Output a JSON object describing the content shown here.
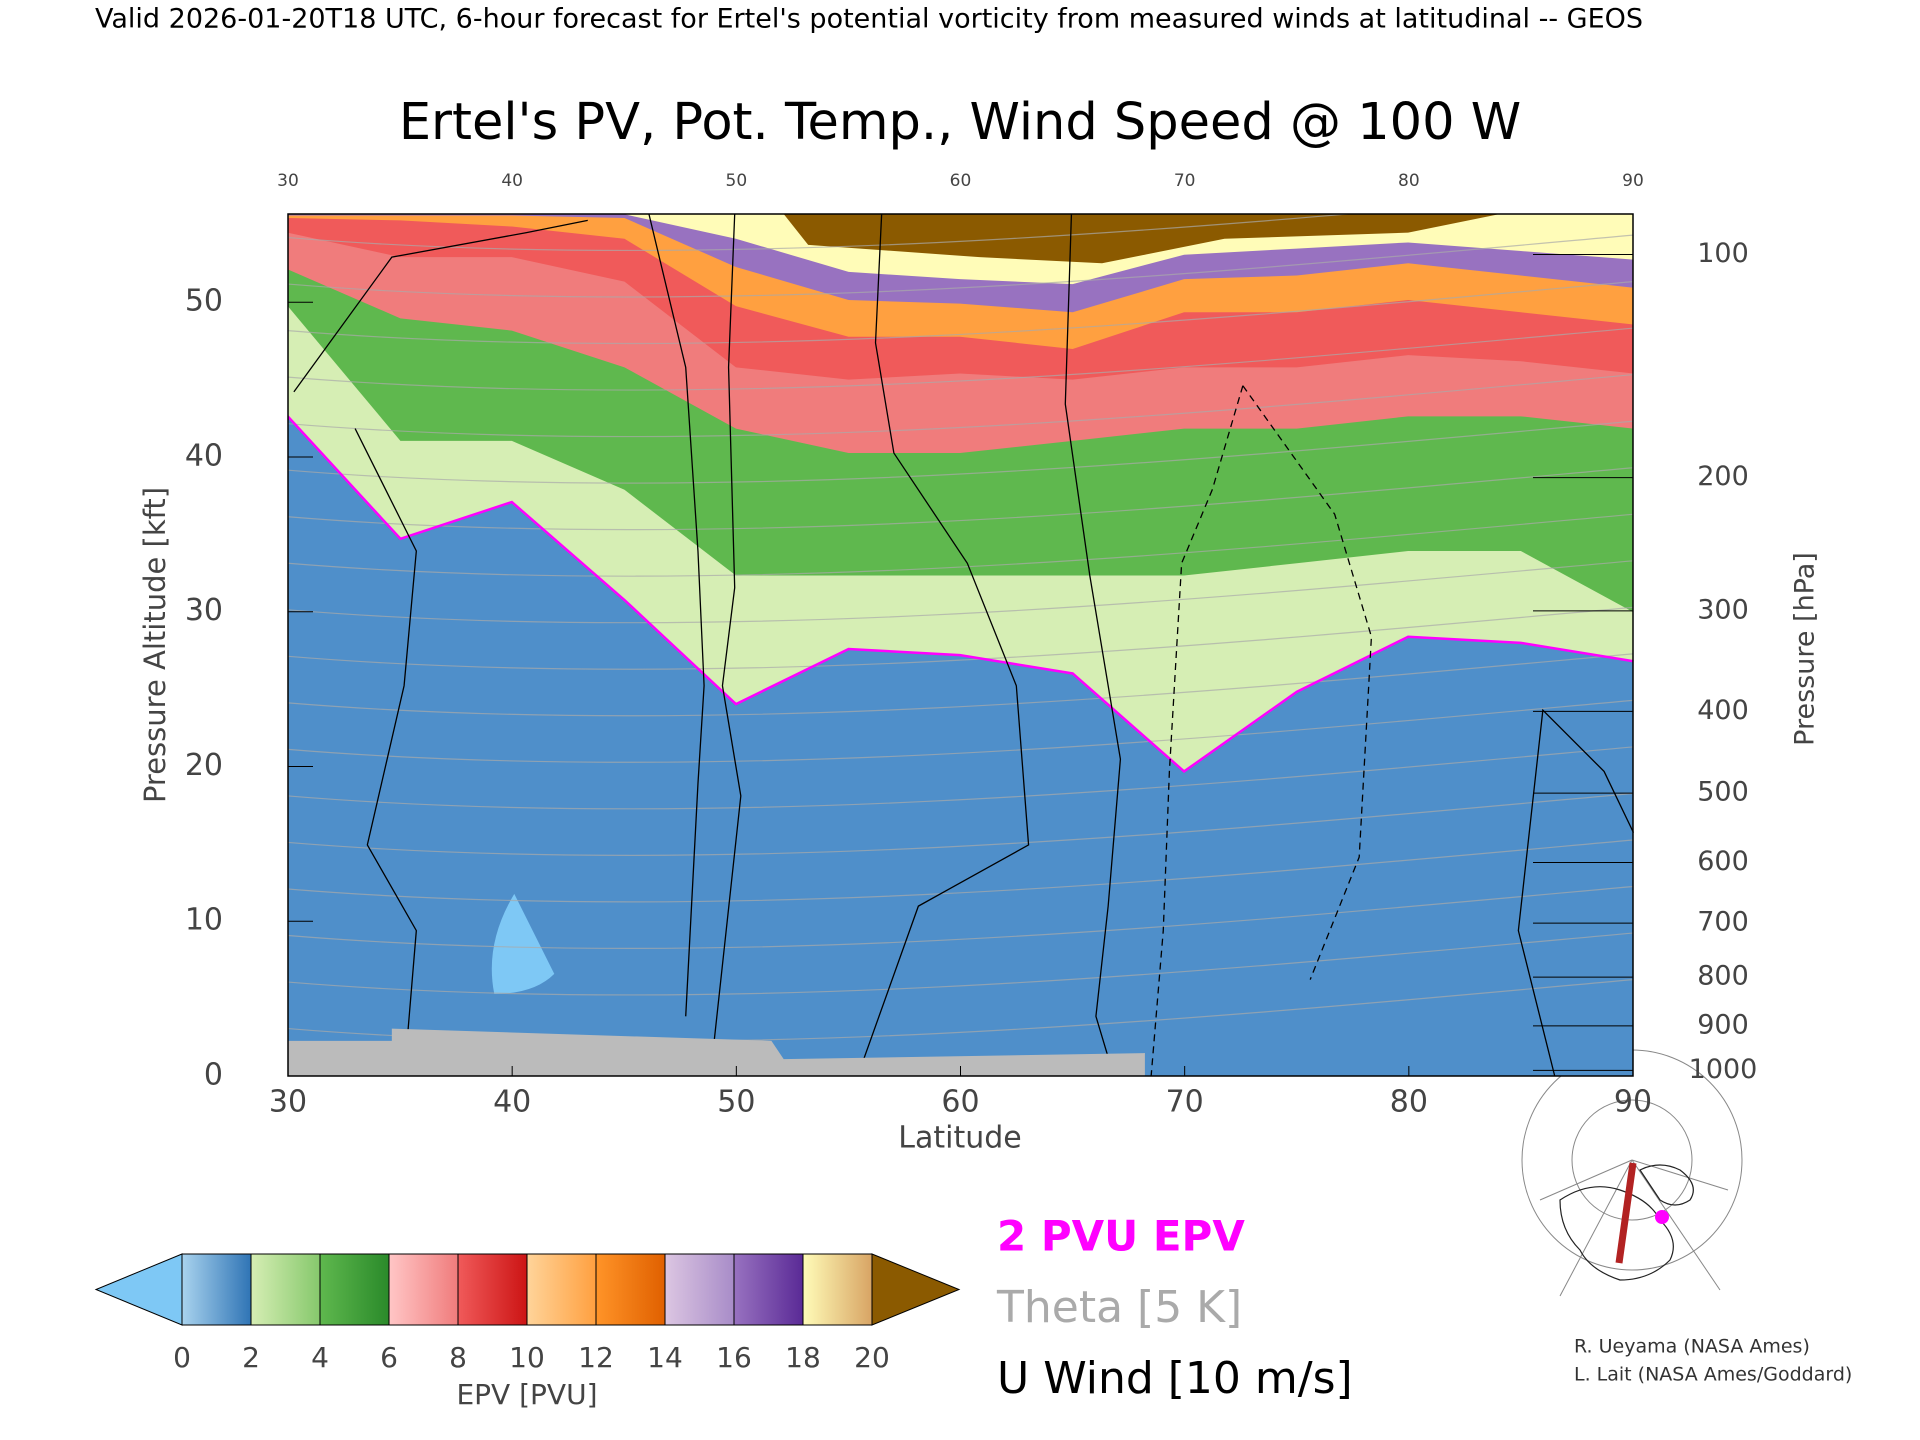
{
  "header": "Valid 2026-01-20T18 UTC, 6-hour forecast for Ertel's potential vorticity from measured winds at latitudinal -- GEOS",
  "chart_data": {
    "type": "cross-section",
    "title": "Ertel's PV, Pot. Temp., Wind Speed @ 100 W",
    "xlabel": "Latitude",
    "ylabel": "Pressure Altitude [kft]",
    "y2label": "Pressure [hPa]",
    "xlim": [
      30,
      90
    ],
    "xticks": [
      30,
      40,
      50,
      60,
      70,
      80,
      90
    ],
    "ylim": [
      0,
      55.7
    ],
    "yticks": [
      0,
      10,
      20,
      30,
      40,
      50
    ],
    "y2scale": "pressure-altitude",
    "y2ticks": [
      100,
      200,
      300,
      400,
      500,
      600,
      700,
      800,
      900,
      1000
    ],
    "colorbar": {
      "label": "EPV [PVU]",
      "ticks": [
        0,
        2,
        4,
        6,
        8,
        10,
        12,
        14,
        16,
        18,
        20
      ],
      "under_color": "#7ec8f5",
      "over_color": "#8b5a00",
      "colors": [
        [
          "#a9d3ee",
          "#2f74b5"
        ],
        [
          "#d6eeb4",
          "#86c86c"
        ],
        [
          "#5fb84e",
          "#2a8a2a"
        ],
        [
          "#ffc6c6",
          "#f07c7c"
        ],
        [
          "#f05a5a",
          "#cc1414"
        ],
        [
          "#ffd49a",
          "#ffa040"
        ],
        [
          "#ff9428",
          "#e06000"
        ],
        [
          "#dcc6e2",
          "#a88cc8"
        ],
        [
          "#9872c0",
          "#5a2a96"
        ],
        [
          "#fffcb8",
          "#d8a464"
        ]
      ]
    },
    "legend": [
      {
        "label": "2 PVU EPV",
        "color": "#ff00ff"
      },
      {
        "label": "Theta [5 K]",
        "color": "#aaaaaa"
      },
      {
        "label": "U Wind [10 m/s]",
        "color": "#000000"
      }
    ]
  },
  "credits": [
    "R. Ueyama (NASA Ames)",
    "L. Lait (NASA Ames/Goddard)"
  ]
}
